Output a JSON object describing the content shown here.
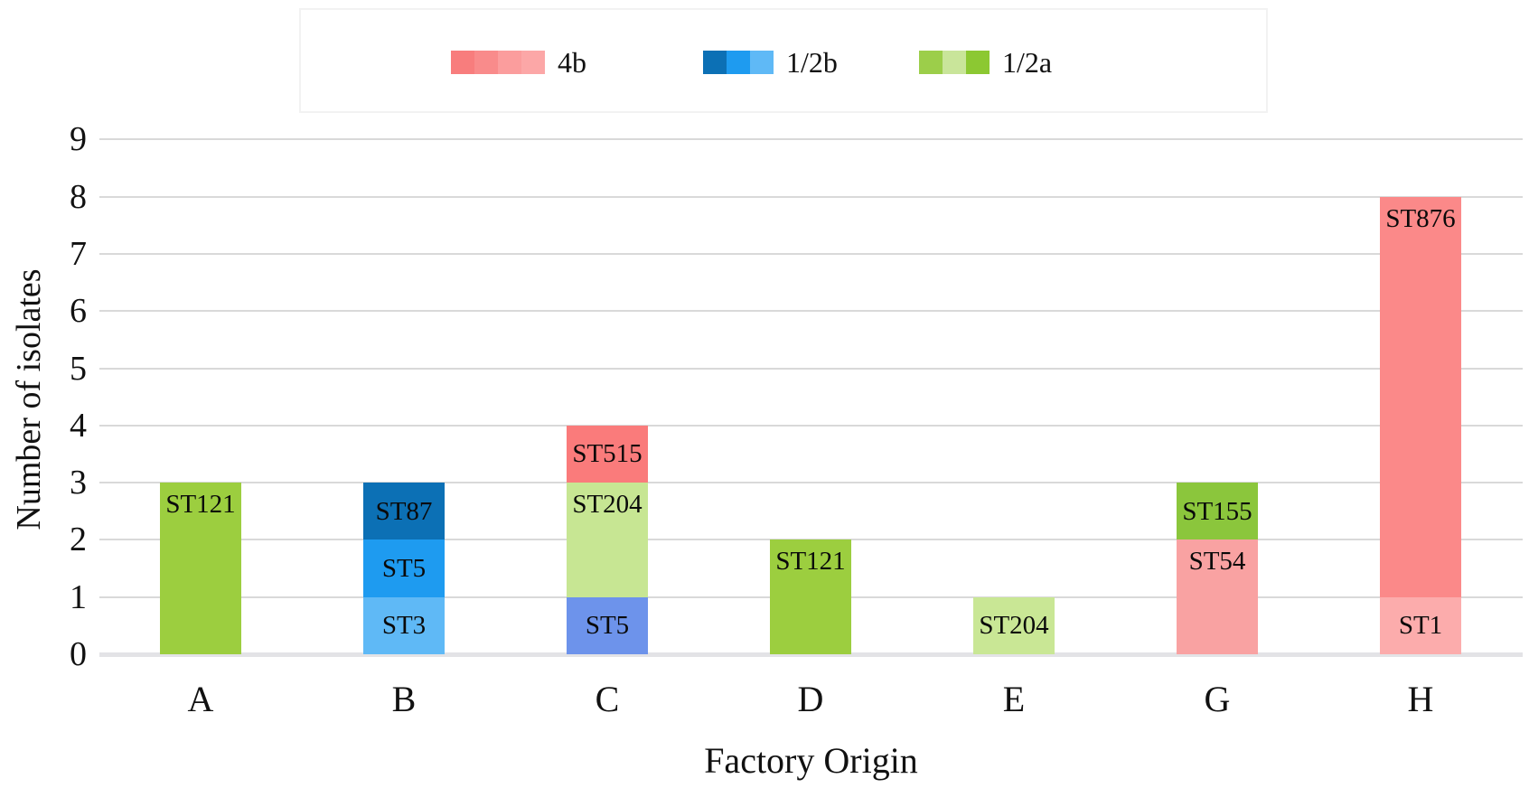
{
  "chart_data": {
    "type": "bar",
    "stacked": true,
    "title": "",
    "xlabel": "Factory Origin",
    "ylabel": "Number of isolates",
    "ylim": [
      0,
      9
    ],
    "yticks": [
      0,
      1,
      2,
      3,
      4,
      5,
      6,
      7,
      8,
      9
    ],
    "grid": true,
    "legend_position": "top",
    "categories": [
      "A",
      "B",
      "C",
      "D",
      "E",
      "G",
      "H"
    ],
    "legend": [
      {
        "label": "4b",
        "swatch_colors": [
          "#F87D7D",
          "#F98B8B",
          "#FB9D9D",
          "#FCA7A7"
        ]
      },
      {
        "label": "1/2b",
        "swatch_colors": [
          "#0C70B5",
          "#1E9BF0",
          "#5FB9F6"
        ]
      },
      {
        "label": "1/2a",
        "swatch_colors": [
          "#9CCE4A",
          "#C9E59A",
          "#8CC832"
        ]
      }
    ],
    "bars": [
      {
        "category": "A",
        "total": 3,
        "segments": [
          {
            "label": "ST121",
            "value": 3,
            "serotype": "1/2a",
            "color": "#9CCE3F"
          }
        ]
      },
      {
        "category": "B",
        "total": 3,
        "segments": [
          {
            "label": "ST3",
            "value": 1,
            "serotype": "1/2b",
            "color": "#5FB9F6"
          },
          {
            "label": "ST5",
            "value": 1,
            "serotype": "1/2b",
            "color": "#1E9BF0"
          },
          {
            "label": "ST87",
            "value": 1,
            "serotype": "1/2b",
            "color": "#0C70B5"
          }
        ]
      },
      {
        "category": "C",
        "total": 4,
        "segments": [
          {
            "label": "ST5",
            "value": 1,
            "serotype": "1/2b",
            "color": "#6D93EB"
          },
          {
            "label": "ST204",
            "value": 2,
            "serotype": "1/2a",
            "color": "#C7E693"
          },
          {
            "label": "ST515",
            "value": 1,
            "serotype": "4b",
            "color": "#FA7B7B"
          }
        ]
      },
      {
        "category": "D",
        "total": 2,
        "segments": [
          {
            "label": "ST121",
            "value": 2,
            "serotype": "1/2a",
            "color": "#9CCE3F"
          }
        ]
      },
      {
        "category": "E",
        "total": 1,
        "segments": [
          {
            "label": "ST204",
            "value": 1,
            "serotype": "1/2a",
            "color": "#C9E795"
          }
        ]
      },
      {
        "category": "G",
        "total": 3,
        "segments": [
          {
            "label": "ST54",
            "value": 2,
            "serotype": "4b",
            "color": "#F9A2A2"
          },
          {
            "label": "ST155",
            "value": 1,
            "serotype": "1/2a",
            "color": "#8BC63C"
          }
        ]
      },
      {
        "category": "H",
        "total": 8,
        "segments": [
          {
            "label": "ST1",
            "value": 1,
            "serotype": "4b",
            "color": "#FCACAC"
          },
          {
            "label": "ST876",
            "value": 7,
            "serotype": "4b",
            "color": "#FB8989"
          }
        ]
      }
    ]
  }
}
